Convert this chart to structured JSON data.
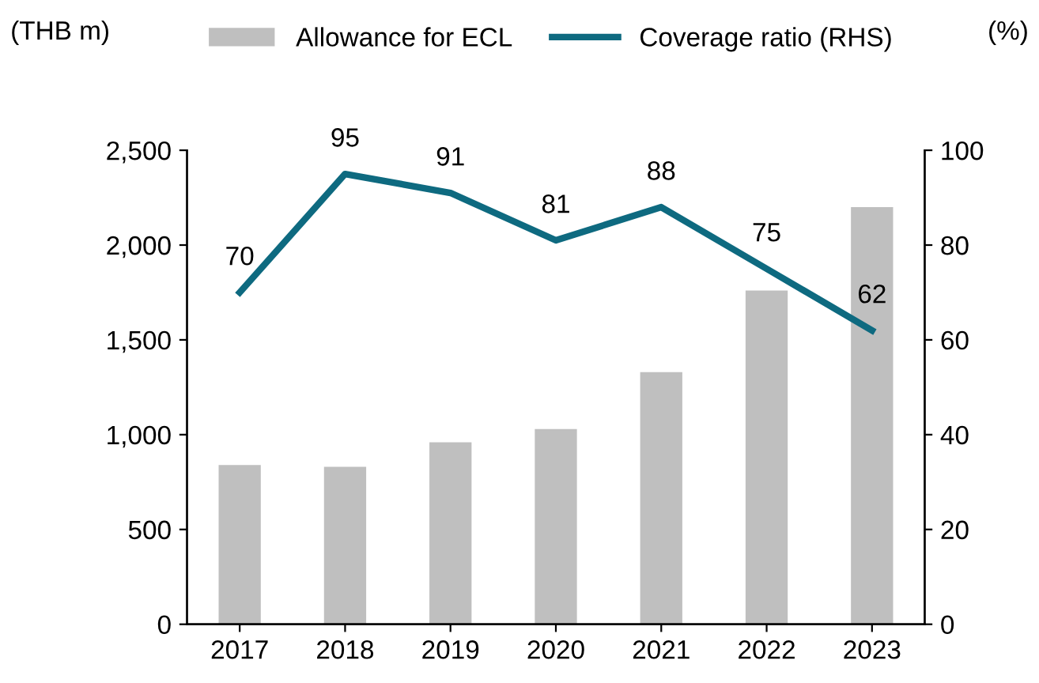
{
  "chart_data": {
    "type": "bar",
    "categories": [
      "2017",
      "2018",
      "2019",
      "2020",
      "2021",
      "2022",
      "2023"
    ],
    "ylabel": "(THB m)",
    "y2label": "(%)",
    "series": [
      {
        "name": "Allowance for ECL",
        "color": "#bfbfbf",
        "values": [
          840,
          830,
          960,
          1030,
          1330,
          1760,
          2200
        ]
      },
      {
        "name": "Coverage ratio (RHS)",
        "type": "line",
        "axis": "y2",
        "color": "#0e6a80",
        "values": [
          70,
          95,
          91,
          81,
          88,
          75,
          62
        ],
        "value_labels": [
          "70",
          "95",
          "91",
          "81",
          "88",
          "75",
          "62"
        ]
      }
    ],
    "ylim": [
      0,
      2500
    ],
    "yticks": [
      0,
      500,
      {
        "value": 1000,
        "label": "1,000"
      },
      {
        "value": 1500,
        "label": "1,500"
      },
      {
        "value": 2000,
        "label": "2,000"
      },
      {
        "value": 2500,
        "label": "2,500"
      }
    ],
    "y2lim": [
      0,
      100
    ],
    "y2ticks": [
      0,
      20,
      40,
      60,
      80,
      100
    ],
    "grid": false,
    "legend": "top",
    "marker": "none",
    "line_style": "solid"
  }
}
